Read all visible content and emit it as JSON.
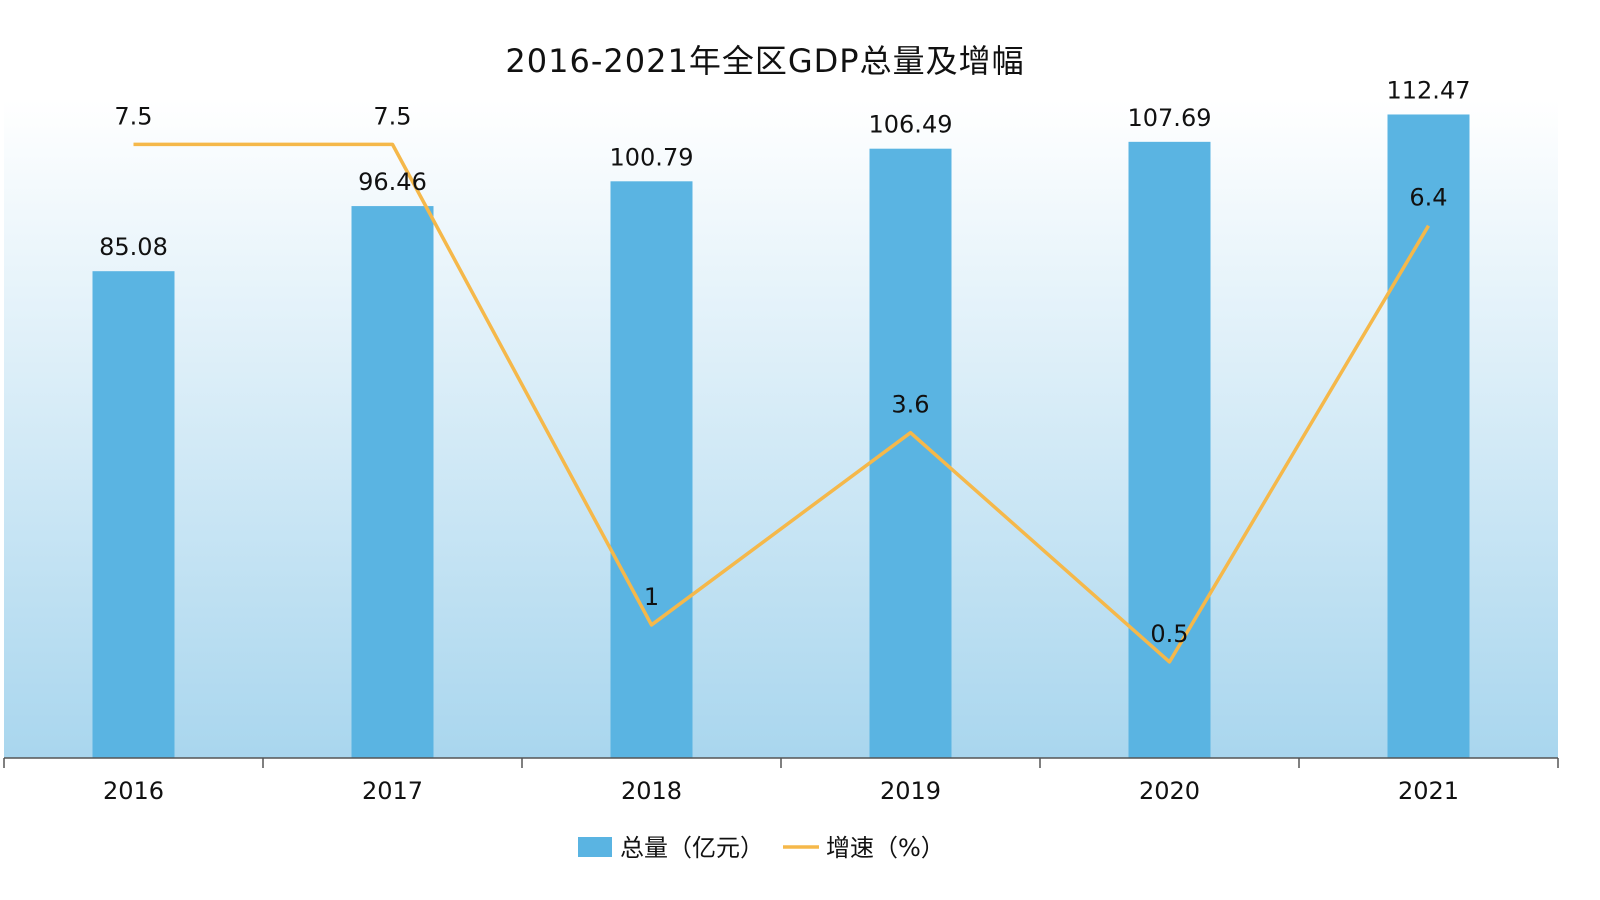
{
  "colors": {
    "bar": "#5AB4E2",
    "line": "#F5B84A",
    "axis": "#555555",
    "text": "#111111",
    "plot_bg_top": "#FFFFFF",
    "plot_bg_bottom": "#A9D6EE"
  },
  "chart_data": {
    "type": "bar",
    "title": "2016-2021年全区GDP总量及增幅",
    "xlabel": "",
    "ylabel": "",
    "categories": [
      "2016",
      "2017",
      "2018",
      "2019",
      "2020",
      "2021"
    ],
    "series": [
      {
        "name": "总量（亿元）",
        "type": "bar",
        "axis": "primary",
        "values": [
          85.08,
          96.46,
          100.79,
          106.49,
          107.69,
          112.47
        ],
        "labels": [
          "85.08",
          "96.46",
          "100.79",
          "106.49",
          "107.69",
          "112.47"
        ]
      },
      {
        "name": "增速（%）",
        "type": "line",
        "axis": "secondary",
        "values": [
          7.5,
          7.5,
          1,
          3.6,
          0.5,
          6.4
        ],
        "labels": [
          "7.5",
          "7.5",
          "1",
          "3.6",
          "0.5",
          "6.4"
        ]
      }
    ],
    "ylim": [
      0,
      115
    ],
    "y2lim": [
      -0.8,
      8.1
    ],
    "grid": false,
    "y_axis_visible": false,
    "legend_position": "bottom-center"
  }
}
